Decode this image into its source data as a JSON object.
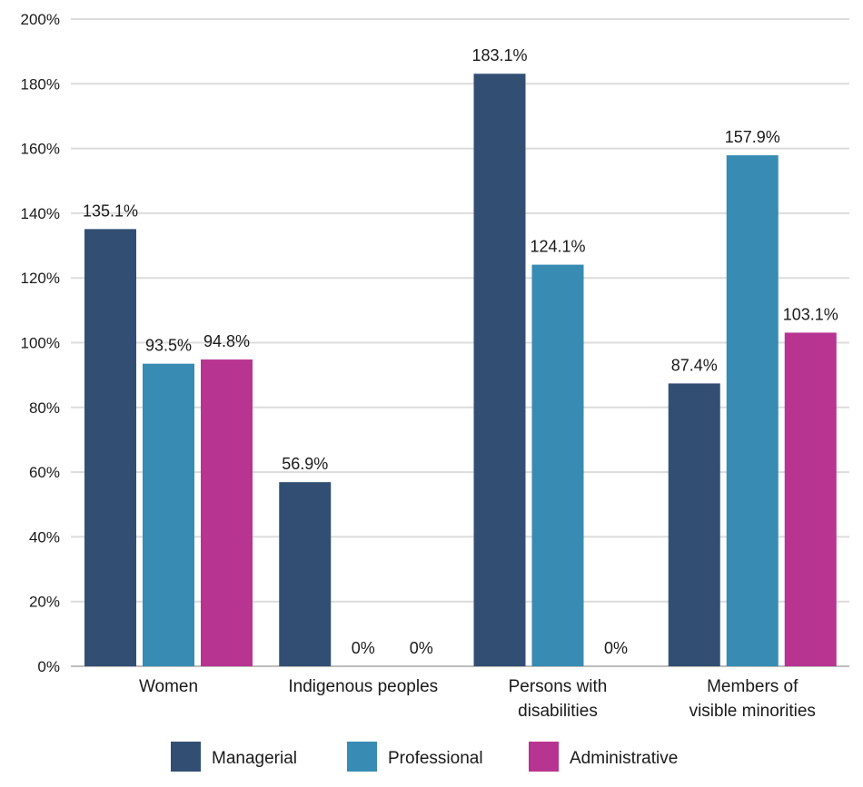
{
  "chart_data": {
    "type": "bar",
    "title": "",
    "xlabel": "",
    "ylabel": "",
    "ylim": [
      0,
      200
    ],
    "yticks": [
      0,
      20,
      40,
      60,
      80,
      100,
      120,
      140,
      160,
      180,
      200
    ],
    "ytick_format": "%",
    "grid": true,
    "legend_position": "bottom",
    "categories": [
      "Women",
      "Indigenous peoples",
      "Persons with\ndisabilities",
      "Members of\nvisible minorities"
    ],
    "series": [
      {
        "name": "Managerial",
        "color": "#324f73",
        "values": [
          135.1,
          56.9,
          183.1,
          87.4
        ],
        "labels": [
          "135.1%",
          "56.9%",
          "183.1%",
          "87.4%"
        ]
      },
      {
        "name": "Professional",
        "color": "#388bb2",
        "values": [
          93.5,
          0,
          124.1,
          157.9
        ],
        "labels": [
          "93.5%",
          "0%",
          "124.1%",
          "157.9%"
        ]
      },
      {
        "name": "Administrative",
        "color": "#b73490",
        "values": [
          94.8,
          0,
          0,
          103.1
        ],
        "labels": [
          "94.8%",
          "0%",
          "0%",
          "103.1%"
        ]
      }
    ]
  }
}
